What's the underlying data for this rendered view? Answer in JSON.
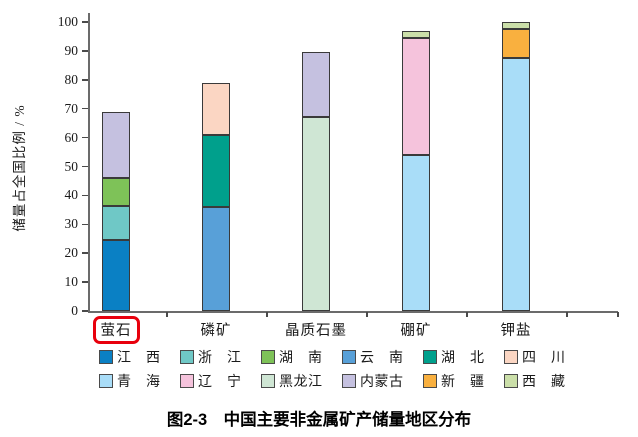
{
  "figure": {
    "caption": "图2-3　中国主要非金属矿产储量地区分布"
  },
  "chart_data": {
    "type": "bar",
    "stacked": true,
    "ylabel": "储量占全国比例 / %",
    "ylim": [
      0,
      100
    ],
    "ytick_step": 10,
    "grid": false,
    "legend_position": "bottom",
    "categories": [
      "萤石",
      "磷矿",
      "晶质石墨",
      "硼矿",
      "钾盐"
    ],
    "highlighted_category": "萤石",
    "series": [
      {
        "name": "江西",
        "label": "江　西",
        "color": "#0a80c4",
        "values": [
          24.5,
          0,
          0,
          0,
          0
        ]
      },
      {
        "name": "浙江",
        "label": "浙　江",
        "color": "#6fc8c6",
        "values": [
          12,
          0,
          0,
          0,
          0
        ]
      },
      {
        "name": "湖南",
        "label": "湖　南",
        "color": "#7ec258",
        "values": [
          9.5,
          0,
          0,
          0,
          0
        ]
      },
      {
        "name": "云南",
        "label": "云　南",
        "color": "#58a0d8",
        "values": [
          0,
          36,
          0,
          0,
          0
        ]
      },
      {
        "name": "湖北",
        "label": "湖　北",
        "color": "#00a08c",
        "values": [
          0,
          25,
          0,
          0,
          0
        ]
      },
      {
        "name": "四川",
        "label": "四　川",
        "color": "#fbd6c3",
        "values": [
          0,
          18,
          0,
          0,
          0
        ]
      },
      {
        "name": "青海",
        "label": "青　海",
        "color": "#a9ddf8",
        "values": [
          0,
          0,
          0,
          54,
          87.5
        ]
      },
      {
        "name": "辽宁",
        "label": "辽　宁",
        "color": "#f5c3dc",
        "values": [
          0,
          0,
          0,
          40.5,
          0
        ]
      },
      {
        "name": "黑龙江",
        "label": "黑龙江",
        "color": "#cfe6d4",
        "values": [
          0,
          0,
          67,
          0,
          0
        ]
      },
      {
        "name": "内蒙古",
        "label": "内蒙古",
        "color": "#c5c1e0",
        "values": [
          23,
          0,
          22.5,
          0,
          0
        ]
      },
      {
        "name": "新疆",
        "label": "新　疆",
        "color": "#f9b03f",
        "values": [
          0,
          0,
          0,
          0,
          10
        ]
      },
      {
        "name": "西藏",
        "label": "西　藏",
        "color": "#cbdfa9",
        "values": [
          0,
          0,
          0,
          2.5,
          2.5
        ]
      }
    ],
    "bar_totals": {
      "萤石": 69,
      "磷矿": 79,
      "晶质石墨": 89.5,
      "硼矿": 97,
      "钾盐": 100
    }
  },
  "colors": {
    "highlight_box": "#e8000d",
    "axis": "#6b6b6b",
    "bar_border": "#3a3a3a"
  }
}
